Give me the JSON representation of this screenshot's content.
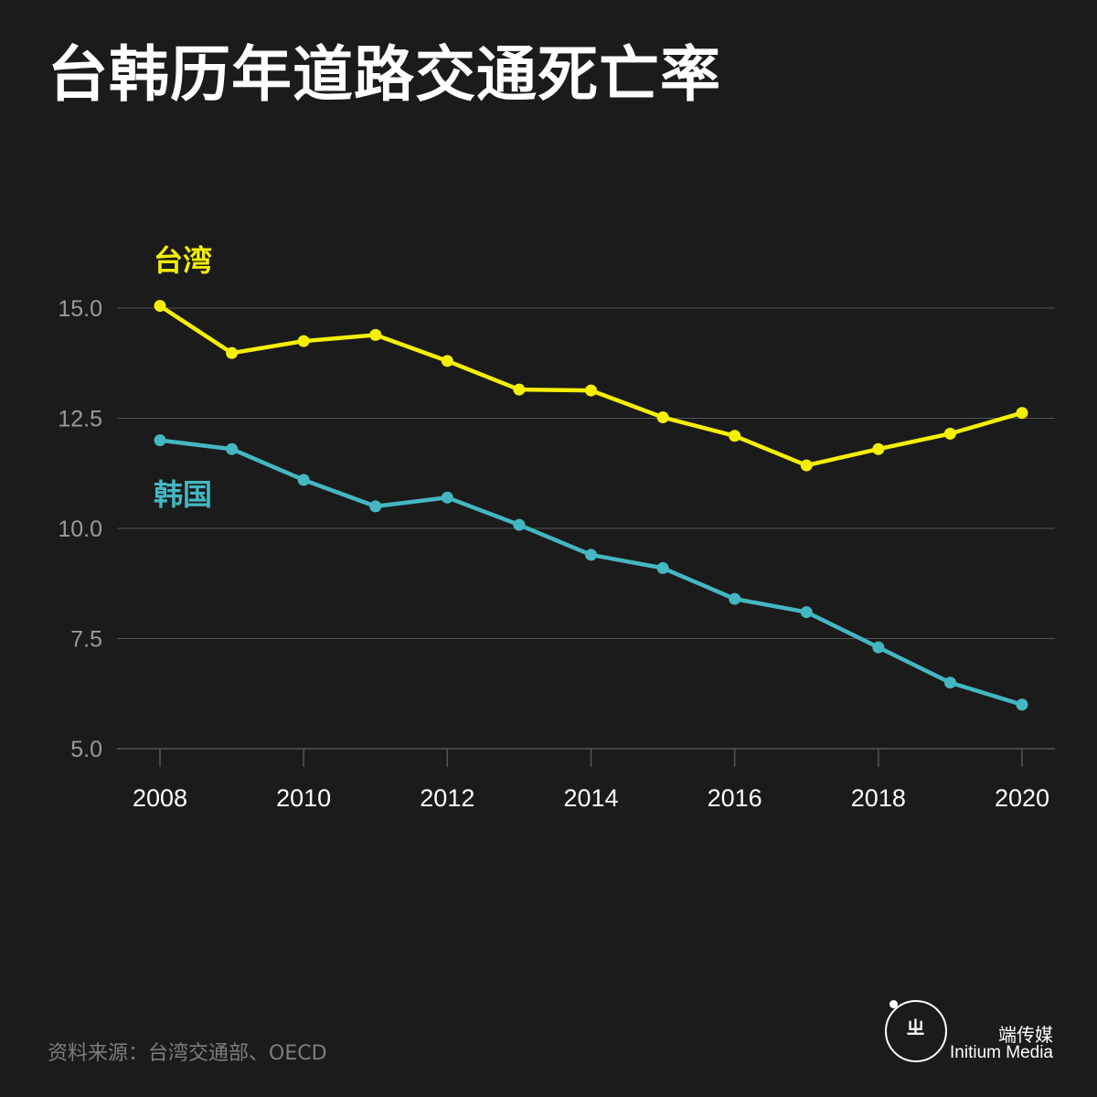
{
  "title": "台韩历年道路交通死亡率",
  "chart_data": {
    "type": "line",
    "x": [
      2008,
      2009,
      2010,
      2011,
      2012,
      2013,
      2014,
      2015,
      2016,
      2017,
      2018,
      2019,
      2020
    ],
    "x_tick_labels": [
      "2008",
      "2010",
      "2012",
      "2014",
      "2016",
      "2018",
      "2020"
    ],
    "y_tick_labels": [
      "15.0",
      "12.5",
      "10.0",
      "7.5",
      "5.0"
    ],
    "ylim": [
      5.0,
      15.0
    ],
    "grid": "horizontal",
    "series": [
      {
        "name": "台湾",
        "color": "#f5f000",
        "values": [
          15.05,
          13.98,
          14.25,
          14.39,
          13.8,
          13.15,
          13.13,
          12.52,
          12.1,
          11.43,
          11.8,
          12.15,
          12.62
        ]
      },
      {
        "name": "韩国",
        "color": "#44b7c2",
        "values": [
          12.0,
          11.8,
          11.1,
          10.5,
          10.7,
          10.08,
          9.4,
          9.1,
          8.4,
          8.1,
          7.3,
          6.5,
          6.0
        ]
      }
    ]
  },
  "source": "资料来源：台湾交通部、OECD",
  "brand": {
    "name_cn": "端传媒",
    "name_en": "Initium Media"
  },
  "colors": {
    "background": "#1b1b1b",
    "grid": "#555555",
    "tick_label": "#9a9a9a",
    "x_tick_label": "#ffffff"
  }
}
